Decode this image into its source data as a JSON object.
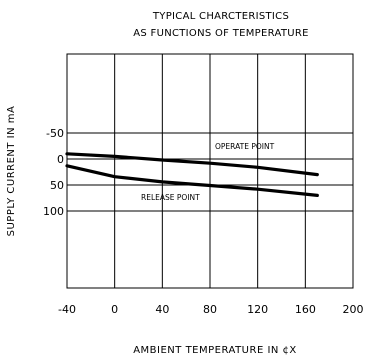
{
  "chart_data": {
    "type": "line",
    "title_lines": [
      "TYPICAL CHARCTERISTICS",
      "AS FUNCTIONS OF TEMPERATURE"
    ],
    "xlabel": "AMBIENT TEMPERATURE IN ¢X",
    "ylabel": "SUPPLY CURRENT IN mA",
    "x_ticks": [
      -40,
      0,
      40,
      80,
      120,
      160,
      200
    ],
    "y_ticks": [
      -50,
      0,
      50,
      100
    ],
    "xlim": [
      -40,
      200
    ],
    "ylim": [
      -50,
      100
    ],
    "grid": true,
    "series": [
      {
        "name": "OPERATE POINT",
        "x": [
          -40,
          0,
          40,
          80,
          120,
          170
        ],
        "y": [
          -10,
          -5,
          2,
          8,
          16,
          30
        ]
      },
      {
        "name": "RELEASE POINT",
        "x": [
          -40,
          0,
          40,
          80,
          120,
          170
        ],
        "y": [
          13,
          34,
          44,
          51,
          58,
          70
        ]
      }
    ]
  }
}
